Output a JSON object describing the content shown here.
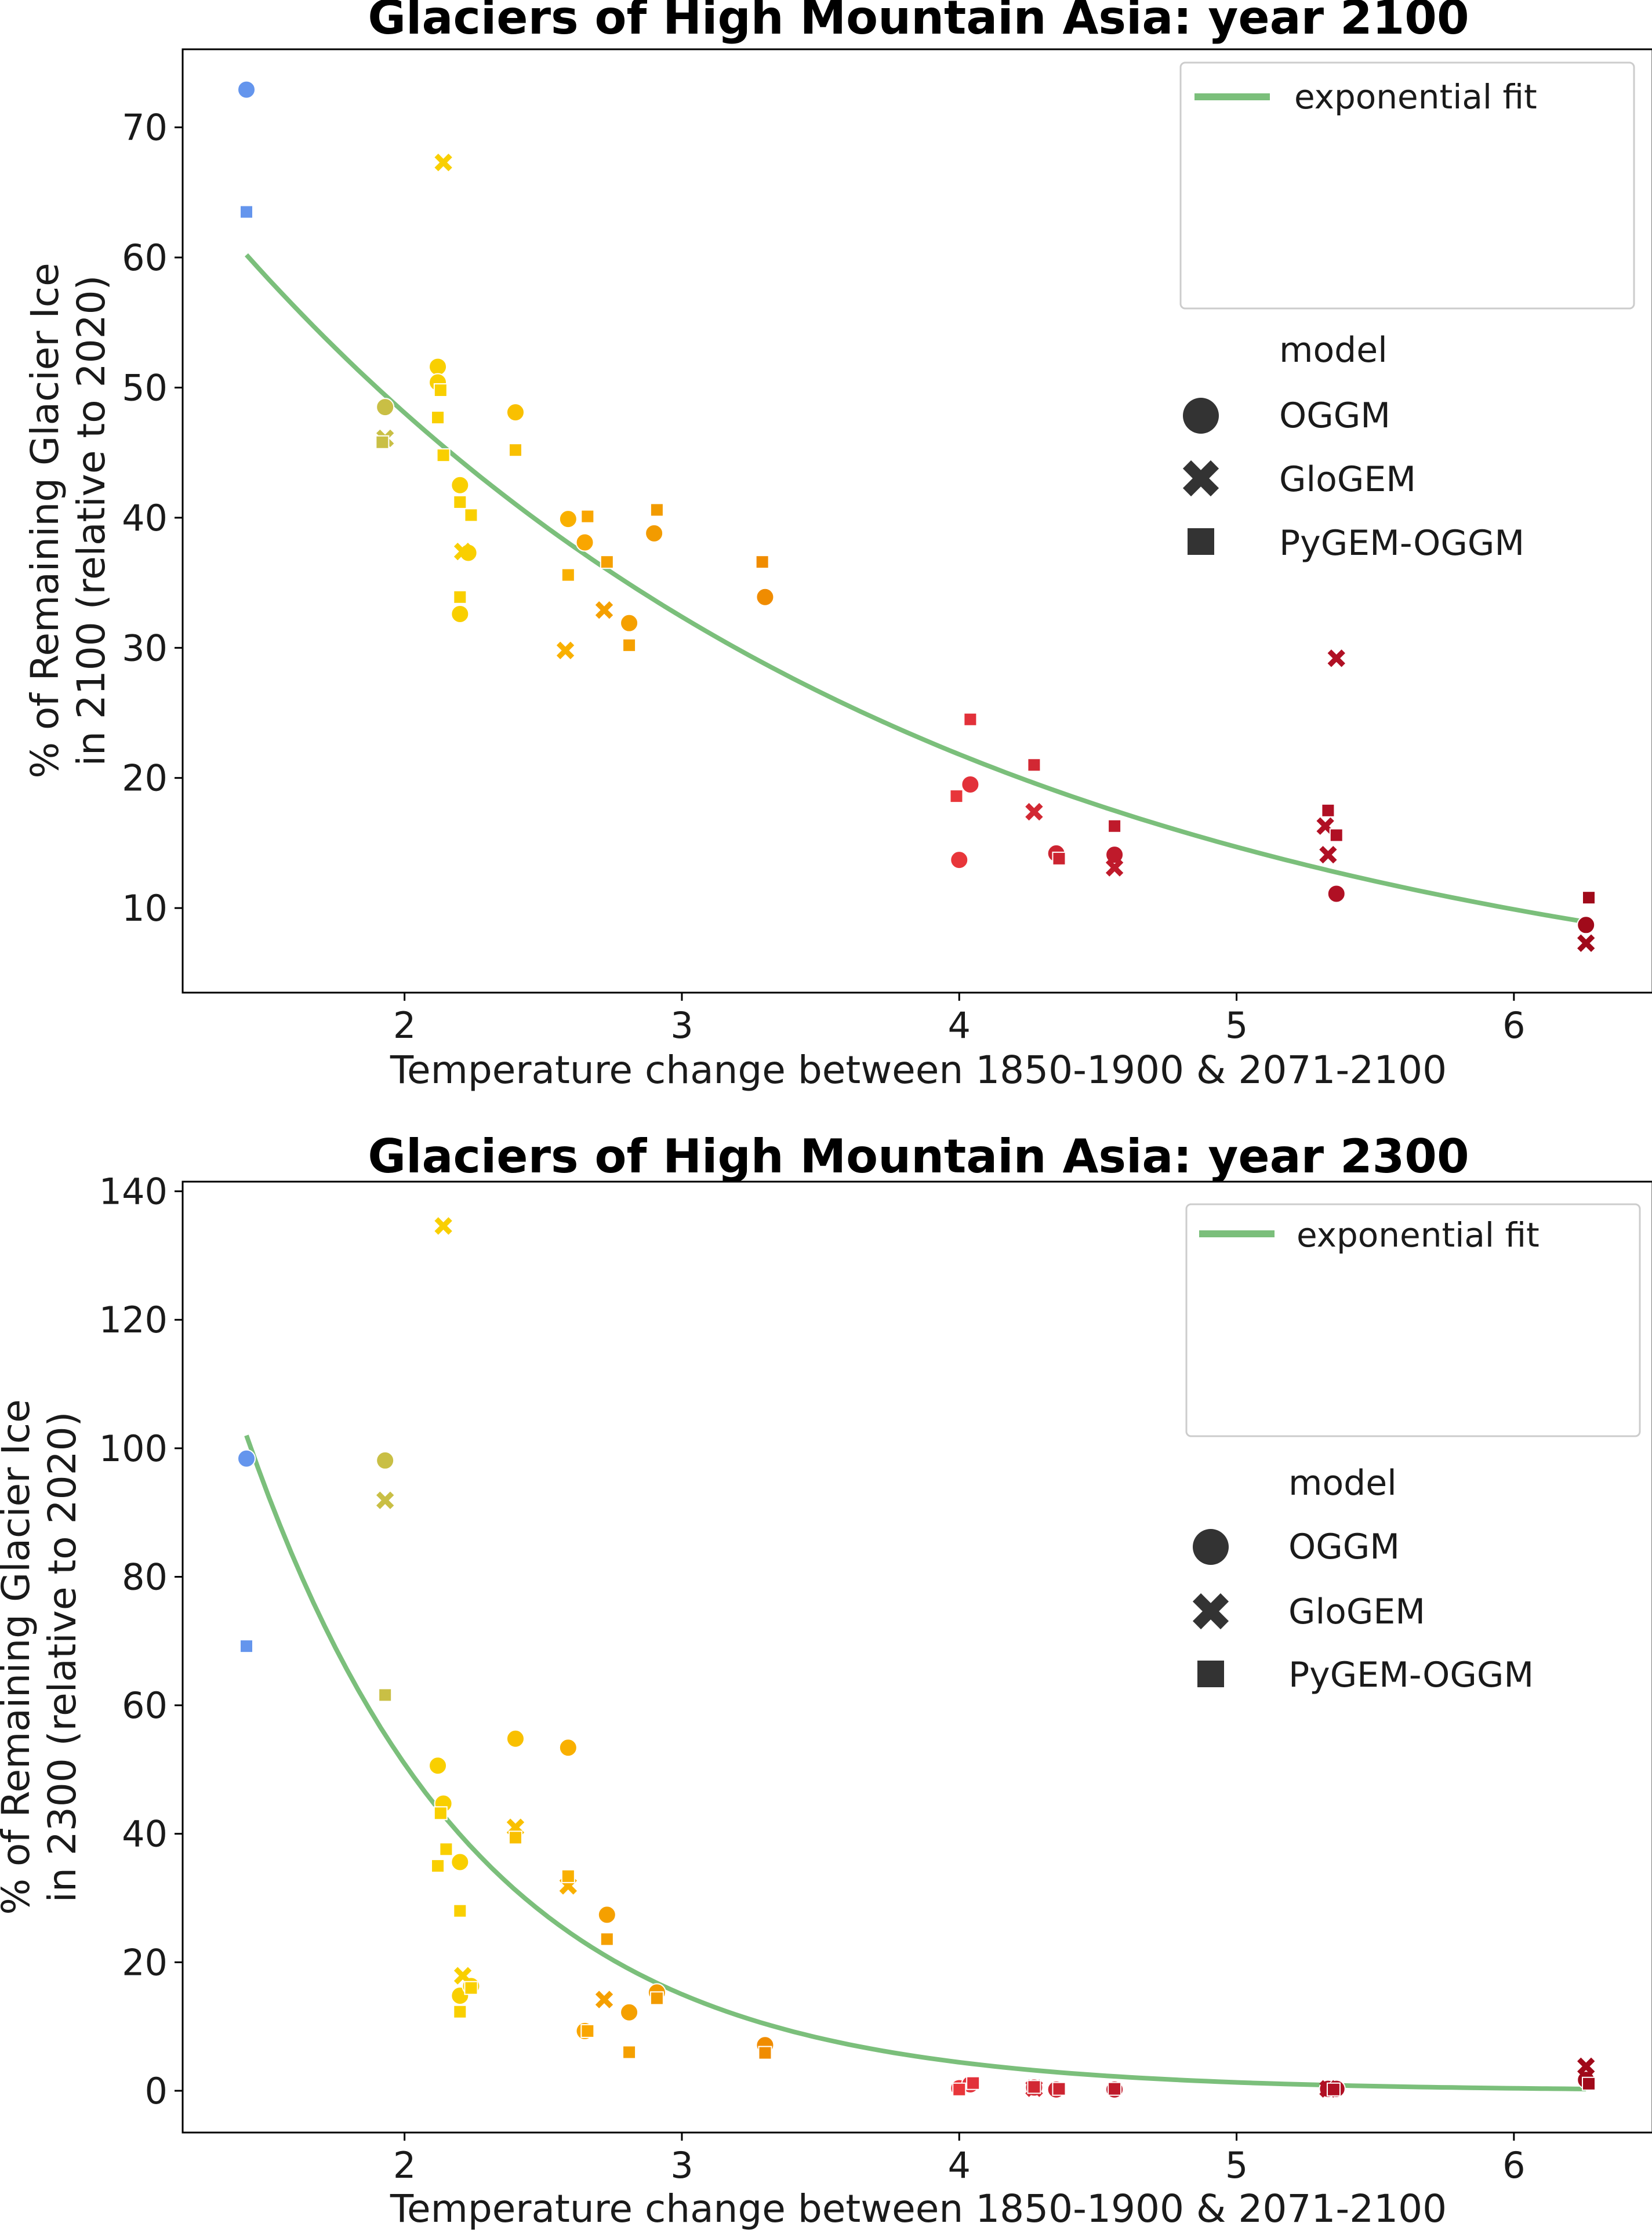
{
  "chart_data": [
    {
      "type": "scatter",
      "title": "Glaciers of High Mountain Asia:  year 2100",
      "xlabel": "Temperature change between 1850-1900 & 2071-2100",
      "ylabel_lines": [
        "% of Remaining Glacier Ice",
        "in 2100 (relative to 2020)"
      ],
      "xlim": [
        1.2,
        6.5
      ],
      "ylim": [
        3.5,
        76
      ],
      "xticks": [
        2,
        3,
        4,
        5,
        6
      ],
      "yticks": [
        10,
        20,
        30,
        40,
        50,
        60,
        70
      ],
      "fit": {
        "label": "exponential fit",
        "color": "#7bbf7b",
        "x": [
          1.43,
          6.26
        ],
        "a": 60.2,
        "b": 0.395
      },
      "legend": {
        "title": "model",
        "entries": [
          {
            "label": "OGGM",
            "marker": "circle"
          },
          {
            "label": "GloGEM",
            "marker": "x"
          },
          {
            "label": "PyGEM-OGGM",
            "marker": "square"
          }
        ]
      },
      "series": [
        {
          "marker": "circle",
          "points": [
            [
              1.43,
              72.9,
              "#6495ed"
            ],
            [
              1.93,
              48.5,
              "#c9bf45"
            ],
            [
              2.12,
              51.6,
              "#f9cf00"
            ],
            [
              2.12,
              50.4,
              "#f9cf00"
            ],
            [
              2.2,
              42.5,
              "#f9cf00"
            ],
            [
              2.2,
              32.6,
              "#f9cf00"
            ],
            [
              2.23,
              37.3,
              "#f9cf00"
            ],
            [
              2.4,
              48.1,
              "#f9c000"
            ],
            [
              2.59,
              39.9,
              "#f9b000"
            ],
            [
              2.65,
              38.1,
              "#f9a600"
            ],
            [
              2.81,
              31.9,
              "#f5a000"
            ],
            [
              2.9,
              38.8,
              "#f29b00"
            ],
            [
              3.3,
              33.9,
              "#f08c00"
            ],
            [
              4.0,
              13.7,
              "#e8363a"
            ],
            [
              4.04,
              19.5,
              "#e2313a"
            ],
            [
              4.35,
              14.2,
              "#cc2431"
            ],
            [
              4.56,
              14.1,
              "#bf1a2b"
            ],
            [
              5.36,
              11.1,
              "#b01024"
            ],
            [
              6.26,
              8.7,
              "#a00a1a"
            ]
          ]
        },
        {
          "marker": "x",
          "points": [
            [
              1.93,
              46.1,
              "#c9bf45"
            ],
            [
              2.14,
              67.3,
              "#f9cf00"
            ],
            [
              2.21,
              37.4,
              "#f9cf00"
            ],
            [
              2.58,
              29.8,
              "#f9b000"
            ],
            [
              2.72,
              32.9,
              "#f5a000"
            ],
            [
              4.27,
              17.4,
              "#d22833"
            ],
            [
              4.56,
              13.1,
              "#bf1a2b"
            ],
            [
              5.32,
              16.3,
              "#b01024"
            ],
            [
              5.33,
              14.1,
              "#b01024"
            ],
            [
              5.36,
              29.2,
              "#b01024"
            ],
            [
              6.26,
              7.3,
              "#a00a1a"
            ]
          ]
        },
        {
          "marker": "square",
          "points": [
            [
              1.43,
              63.5,
              "#6495ed"
            ],
            [
              1.92,
              45.8,
              "#c9bf45"
            ],
            [
              2.12,
              47.7,
              "#f9cf00"
            ],
            [
              2.13,
              49.8,
              "#f9cf00"
            ],
            [
              2.14,
              44.8,
              "#f9cf00"
            ],
            [
              2.2,
              41.2,
              "#f9cf00"
            ],
            [
              2.2,
              33.9,
              "#f9cf00"
            ],
            [
              2.24,
              40.2,
              "#f9cf00"
            ],
            [
              2.4,
              45.2,
              "#f9c000"
            ],
            [
              2.59,
              35.6,
              "#f9b000"
            ],
            [
              2.66,
              40.1,
              "#f9a600"
            ],
            [
              2.73,
              36.6,
              "#f5a000"
            ],
            [
              2.81,
              30.2,
              "#f5a000"
            ],
            [
              2.91,
              40.6,
              "#f29b00"
            ],
            [
              3.29,
              36.6,
              "#f08c00"
            ],
            [
              3.99,
              18.6,
              "#e8363a"
            ],
            [
              4.04,
              24.5,
              "#e2313a"
            ],
            [
              4.27,
              21.0,
              "#d22833"
            ],
            [
              4.36,
              13.8,
              "#cc2431"
            ],
            [
              4.56,
              16.3,
              "#bf1a2b"
            ],
            [
              5.33,
              17.5,
              "#b01024"
            ],
            [
              5.36,
              15.6,
              "#b01024"
            ],
            [
              6.27,
              10.8,
              "#a00a1a"
            ]
          ]
        }
      ]
    },
    {
      "type": "scatter",
      "title": "Glaciers of High Mountain Asia:  year 2300",
      "xlabel": "Temperature change between 1850-1900 & 2071-2100",
      "ylabel_lines": [
        "% of Remaining Glacier Ice",
        "in 2300 (relative to 2020)"
      ],
      "xlim": [
        1.2,
        6.5
      ],
      "ylim": [
        -6.5,
        141.5
      ],
      "xticks": [
        2,
        3,
        4,
        5,
        6
      ],
      "yticks": [
        0,
        20,
        40,
        60,
        80,
        100,
        120,
        140
      ],
      "fit": {
        "label": "exponential fit",
        "color": "#7bbf7b",
        "x": [
          1.43,
          6.26
        ],
        "a": 102.0,
        "b": 1.22
      },
      "legend": {
        "title": "model",
        "entries": [
          {
            "label": "OGGM",
            "marker": "circle"
          },
          {
            "label": "GloGEM",
            "marker": "x"
          },
          {
            "label": "PyGEM-OGGM",
            "marker": "square"
          }
        ]
      },
      "series": [
        {
          "marker": "circle",
          "points": [
            [
              1.43,
              98.4,
              "#6495ed"
            ],
            [
              1.93,
              98.1,
              "#c9bf45"
            ],
            [
              2.12,
              50.6,
              "#f9cf00"
            ],
            [
              2.14,
              44.7,
              "#f9cf00"
            ],
            [
              2.2,
              35.6,
              "#f9cf00"
            ],
            [
              2.2,
              14.8,
              "#f9cf00"
            ],
            [
              2.24,
              16.3,
              "#f9cf00"
            ],
            [
              2.4,
              54.8,
              "#f9c000"
            ],
            [
              2.59,
              53.4,
              "#f9b000"
            ],
            [
              2.65,
              9.3,
              "#f9a600"
            ],
            [
              2.73,
              27.4,
              "#f5a000"
            ],
            [
              2.81,
              12.2,
              "#f5a000"
            ],
            [
              2.91,
              15.3,
              "#f29b00"
            ],
            [
              3.3,
              7.1,
              "#f08c00"
            ],
            [
              4.0,
              0.4,
              "#e8363a"
            ],
            [
              4.04,
              1.0,
              "#e2313a"
            ],
            [
              4.27,
              0.5,
              "#d22833"
            ],
            [
              4.35,
              0.2,
              "#cc2431"
            ],
            [
              4.56,
              0.2,
              "#bf1a2b"
            ],
            [
              5.33,
              0.3,
              "#b01024"
            ],
            [
              5.36,
              0.3,
              "#b01024"
            ],
            [
              6.26,
              1.7,
              "#a00a1a"
            ]
          ]
        },
        {
          "marker": "x",
          "points": [
            [
              1.93,
              91.9,
              "#c9bf45"
            ],
            [
              2.14,
              134.6,
              "#f9cf00"
            ],
            [
              2.21,
              17.9,
              "#f9cf00"
            ],
            [
              2.4,
              41.0,
              "#f9c000"
            ],
            [
              2.59,
              31.9,
              "#f9b000"
            ],
            [
              2.72,
              14.2,
              "#f5a000"
            ],
            [
              4.27,
              0.4,
              "#d22833"
            ],
            [
              5.33,
              0.3,
              "#b01024"
            ],
            [
              6.26,
              3.8,
              "#a00a1a"
            ]
          ]
        },
        {
          "marker": "square",
          "points": [
            [
              1.43,
              69.2,
              "#6495ed"
            ],
            [
              1.93,
              61.6,
              "#c9bf45"
            ],
            [
              2.12,
              35.0,
              "#f9cf00"
            ],
            [
              2.13,
              43.2,
              "#f9cf00"
            ],
            [
              2.15,
              37.6,
              "#f9cf00"
            ],
            [
              2.2,
              28.0,
              "#f9cf00"
            ],
            [
              2.2,
              12.3,
              "#f9cf00"
            ],
            [
              2.24,
              16.0,
              "#f9cf00"
            ],
            [
              2.4,
              39.4,
              "#f9c000"
            ],
            [
              2.59,
              33.4,
              "#f9b000"
            ],
            [
              2.66,
              9.3,
              "#f9a600"
            ],
            [
              2.73,
              23.6,
              "#f5a000"
            ],
            [
              2.81,
              6.0,
              "#f5a000"
            ],
            [
              2.91,
              14.4,
              "#f29b00"
            ],
            [
              3.3,
              5.9,
              "#f08c00"
            ],
            [
              4.0,
              0.2,
              "#e8363a"
            ],
            [
              4.05,
              1.2,
              "#e2313a"
            ],
            [
              4.27,
              0.6,
              "#d22833"
            ],
            [
              4.36,
              0.3,
              "#cc2431"
            ],
            [
              4.56,
              0.3,
              "#bf1a2b"
            ],
            [
              5.35,
              0.2,
              "#b01024"
            ],
            [
              6.27,
              1.1,
              "#a00a1a"
            ]
          ]
        }
      ]
    }
  ]
}
